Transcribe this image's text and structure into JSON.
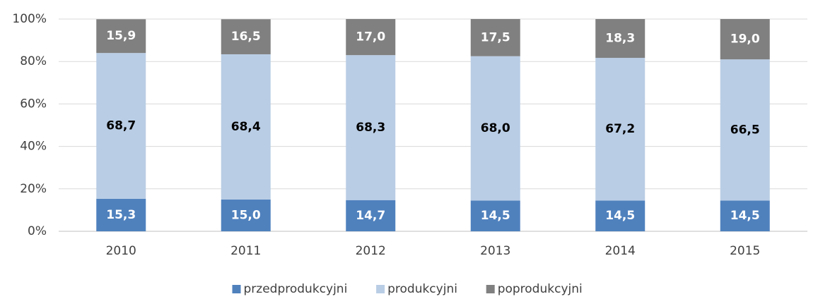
{
  "chart_data": {
    "type": "stacked_bar",
    "categories": [
      "2010",
      "2011",
      "2012",
      "2013",
      "2014",
      "2015"
    ],
    "series": [
      {
        "name": "przedprodukcyjni",
        "color": "#4f81bd",
        "values": [
          15.3,
          15.0,
          14.7,
          14.5,
          14.5,
          14.5
        ],
        "value_labels": [
          "15,3",
          "15,0",
          "14,7",
          "14,5",
          "14,5",
          "14,5"
        ]
      },
      {
        "name": "produkcyjni",
        "color": "#b9cde5",
        "values": [
          68.7,
          68.4,
          68.3,
          68.0,
          67.2,
          66.5
        ],
        "value_labels": [
          "68,7",
          "68,4",
          "68,3",
          "68,0",
          "67,2",
          "66,5"
        ]
      },
      {
        "name": "poprodukcyjni",
        "color": "#808080",
        "values": [
          15.9,
          16.5,
          17.0,
          17.5,
          18.3,
          19.0
        ],
        "value_labels": [
          "15,9",
          "16,5",
          "17,0",
          "17,5",
          "18,3",
          "19,0"
        ]
      }
    ],
    "ylim": [
      0,
      100
    ],
    "yticks": [
      {
        "value": 0,
        "label": "0%"
      },
      {
        "value": 20,
        "label": "20%"
      },
      {
        "value": 40,
        "label": "40%"
      },
      {
        "value": 60,
        "label": "60%"
      },
      {
        "value": 80,
        "label": "80%"
      },
      {
        "value": 100,
        "label": "100%"
      }
    ],
    "grid": true,
    "legend": "bottom"
  }
}
